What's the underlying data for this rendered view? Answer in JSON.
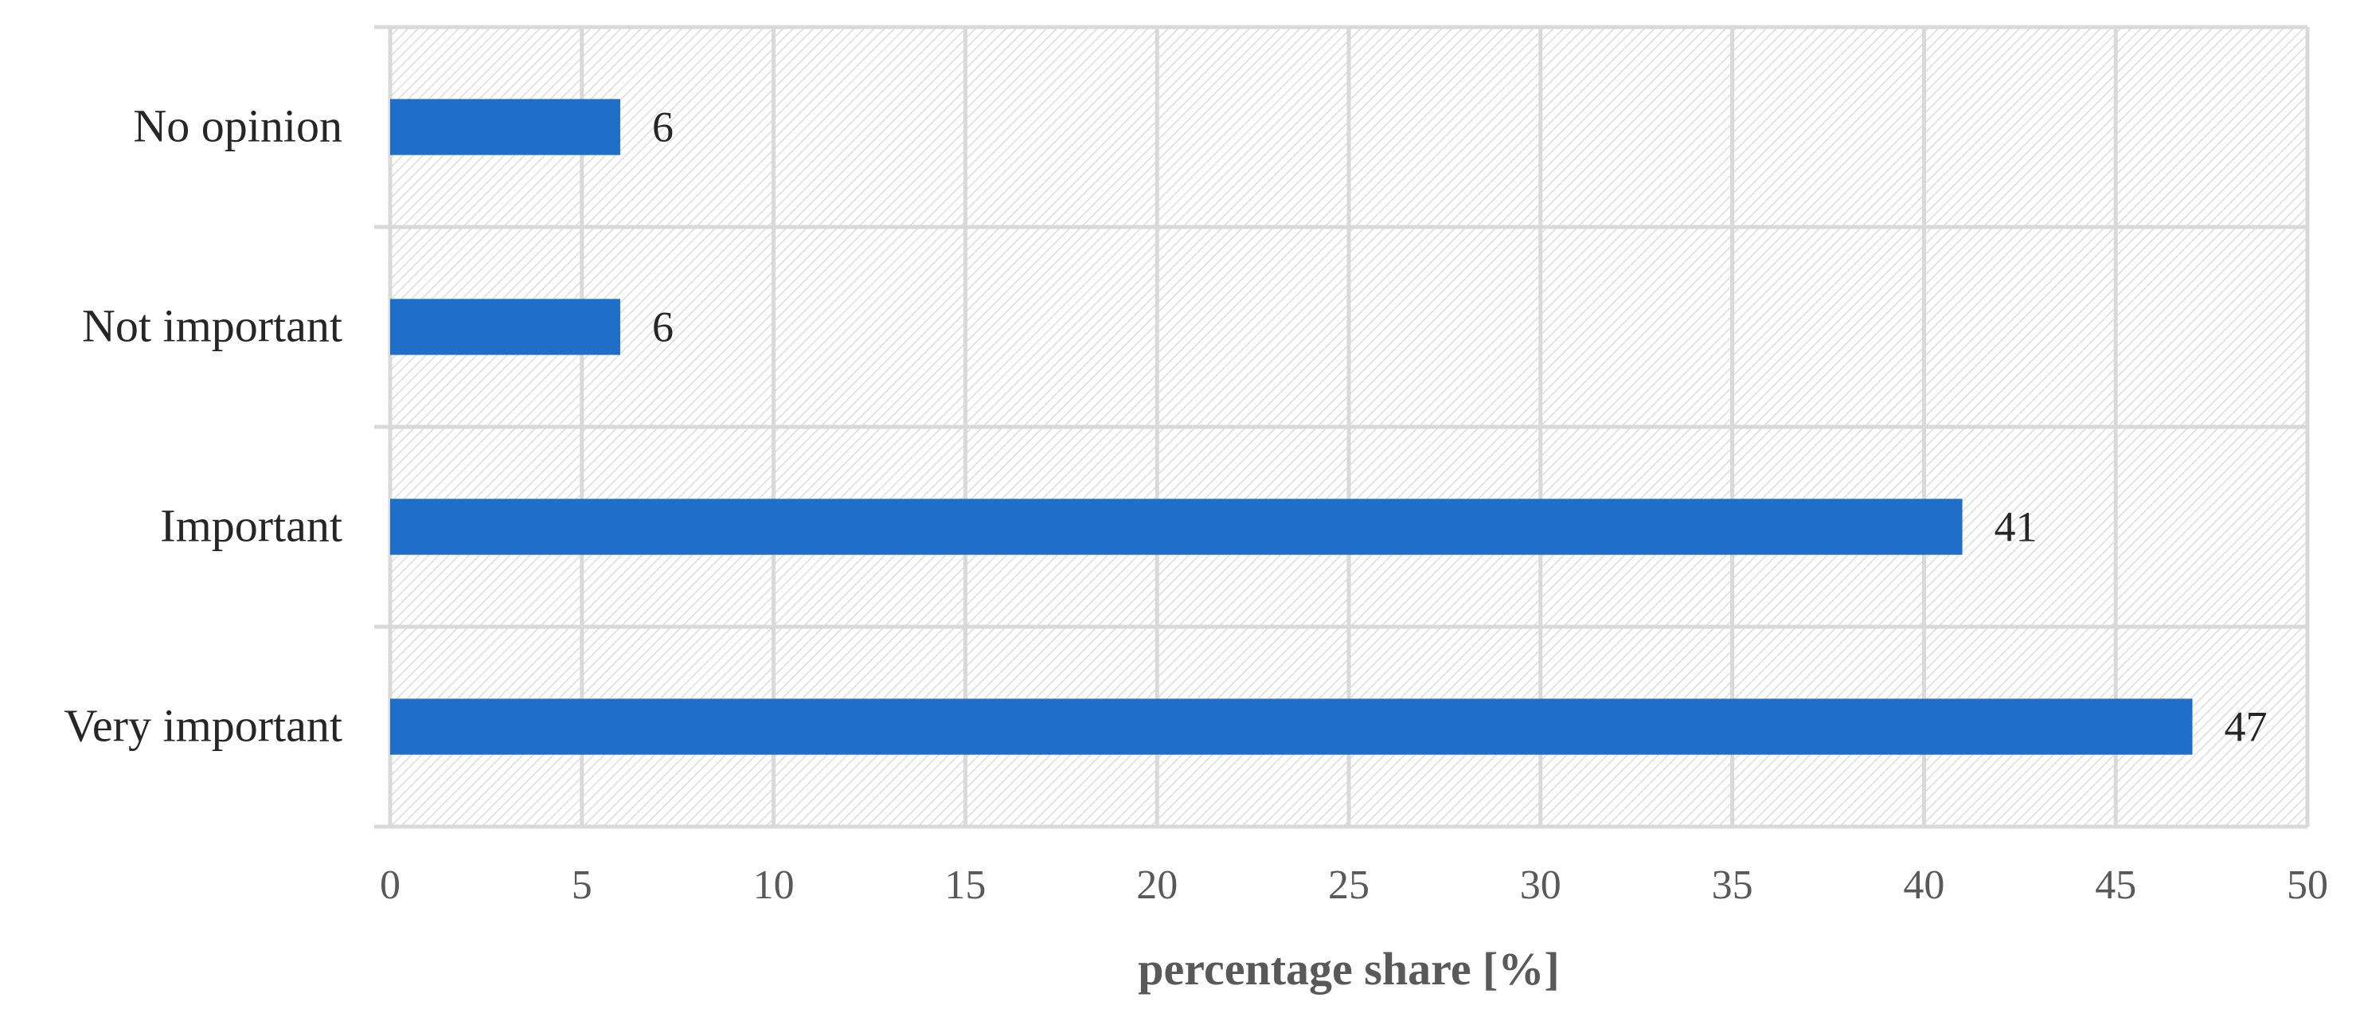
{
  "chart_data": {
    "type": "bar",
    "orientation": "horizontal",
    "categories": [
      "Very important",
      "Important",
      "Not important",
      "No opinion"
    ],
    "values": [
      47,
      41,
      6,
      6
    ],
    "data_labels": [
      "47",
      "41",
      "6",
      "6"
    ],
    "xlabel": "percentage share [%]",
    "xlim": [
      0,
      50
    ],
    "xticks": [
      0,
      5,
      10,
      15,
      20,
      25,
      30,
      35,
      40,
      45,
      50
    ],
    "xtick_labels": [
      "0",
      "5",
      "10",
      "15",
      "20",
      "25",
      "30",
      "35",
      "40",
      "45",
      "50"
    ],
    "grid": true,
    "plot_background": "diagonal hatch",
    "bar_color": "#1f6fc9",
    "grid_color": "#d9d9d9"
  }
}
